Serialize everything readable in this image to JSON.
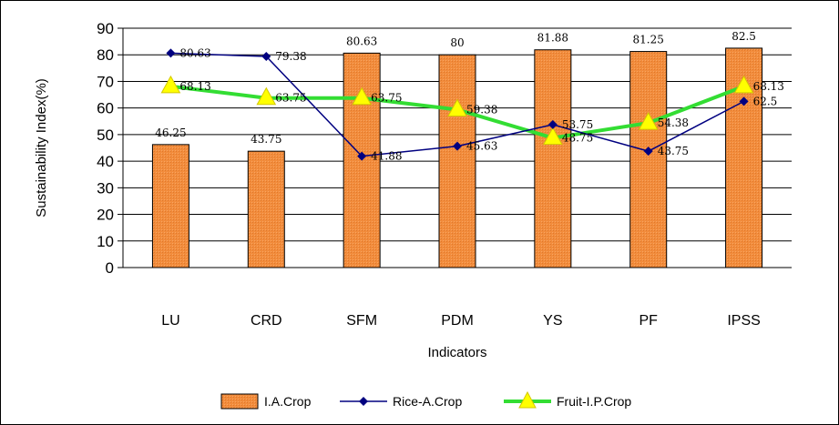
{
  "chart_data": {
    "type": "bar",
    "categories": [
      "LU",
      "CRD",
      "SFM",
      "PDM",
      "YS",
      "PF",
      "IPSS"
    ],
    "xlabel": "Indicators",
    "ylabel": "Sustainability Index(%)",
    "ylim": [
      0,
      90
    ],
    "ytick_step": 10,
    "yticks": [
      "0",
      "10",
      "20",
      "30",
      "40",
      "50",
      "60",
      "70",
      "80",
      "90"
    ],
    "grid": true,
    "legend_position": "bottom",
    "series": [
      {
        "name": "I.A.Crop",
        "kind": "bar",
        "color": "#f28c3c",
        "values": [
          46.25,
          43.75,
          80.63,
          80,
          81.88,
          81.25,
          82.5
        ],
        "labels": [
          "46.25",
          "43.75",
          "80.63",
          "80",
          "81.88",
          "81.25",
          "82.5"
        ]
      },
      {
        "name": "Rice-A.Crop",
        "kind": "line",
        "color": "#000080",
        "marker": "diamond",
        "values": [
          80.63,
          79.38,
          41.88,
          45.63,
          53.75,
          43.75,
          62.5
        ],
        "labels": [
          "80.63",
          "79.38",
          "41.88",
          "45.63",
          "53.75",
          "43.75",
          "62.5"
        ]
      },
      {
        "name": "Fruit-I.P.Crop",
        "kind": "line",
        "color": "#33dd33",
        "marker": "triangle",
        "marker_color": "#ffff00",
        "values": [
          68.13,
          63.75,
          63.75,
          59.38,
          48.75,
          54.38,
          68.13
        ],
        "labels": [
          "68.13",
          "63.75",
          "63.75",
          "59.38",
          "48.75",
          "54.38",
          "68.13"
        ]
      }
    ]
  }
}
